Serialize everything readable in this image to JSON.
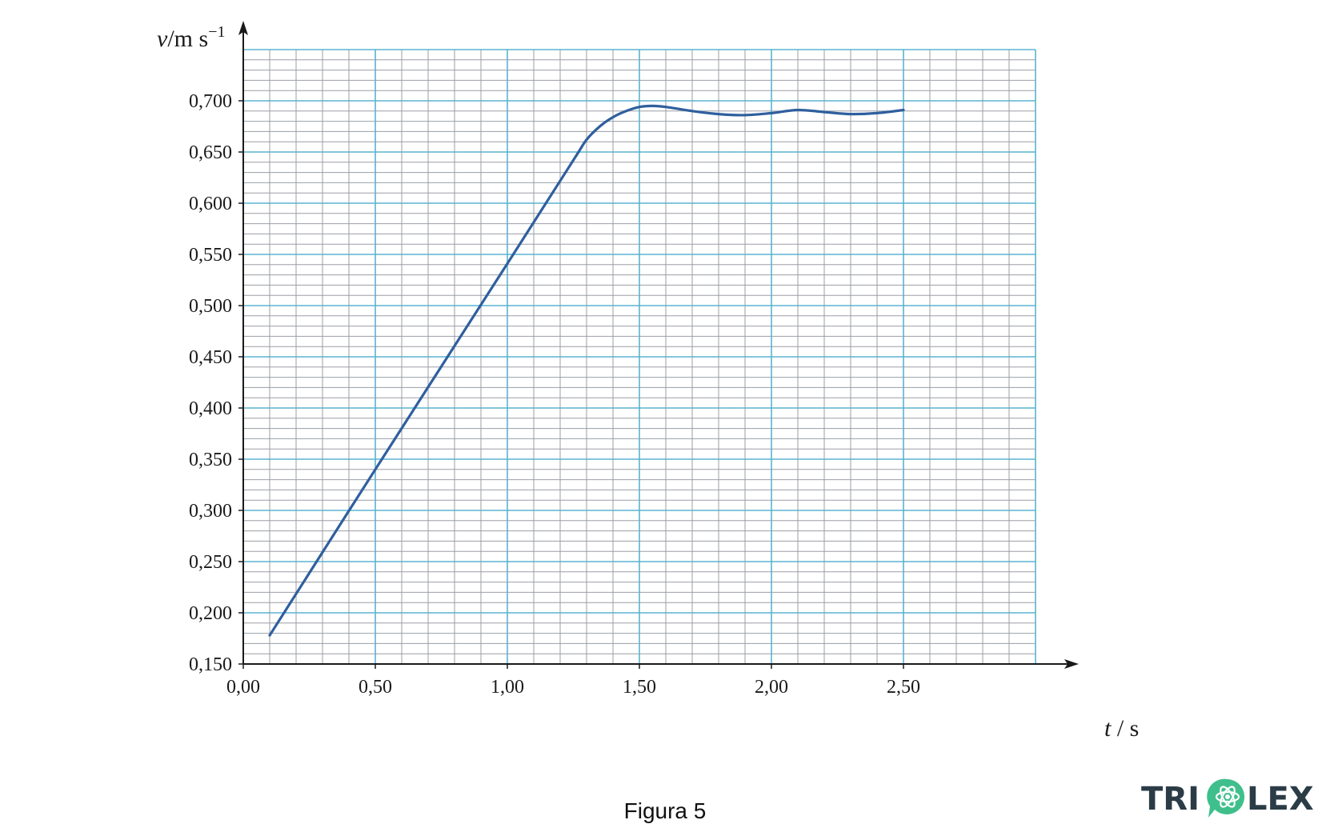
{
  "chart_data": {
    "type": "line",
    "ylabel_var": "v",
    "ylabel_unit": "/m s",
    "ylabel_exp": "−1",
    "xlabel_var": "t",
    "xlabel_unit": " / s",
    "xlim": [
      0.0,
      3.0
    ],
    "ylim": [
      0.15,
      0.75
    ],
    "x_ticks": [
      "0,00",
      "0,50",
      "1,00",
      "1,50",
      "2,00",
      "2,50"
    ],
    "x_tick_values": [
      0.0,
      0.5,
      1.0,
      1.5,
      2.0,
      2.5
    ],
    "y_ticks": [
      "0,150",
      "0,200",
      "0,250",
      "0,300",
      "0,350",
      "0,400",
      "0,450",
      "0,500",
      "0,550",
      "0,600",
      "0,650",
      "0,700"
    ],
    "y_tick_values": [
      0.15,
      0.2,
      0.25,
      0.3,
      0.35,
      0.4,
      0.45,
      0.5,
      0.55,
      0.6,
      0.65,
      0.7
    ],
    "grid": true,
    "grid_minor_x": 0.1,
    "grid_minor_y": 0.01,
    "series": [
      {
        "color": "#2f5f9e",
        "x": [
          0.1,
          0.5,
          1.0,
          1.25,
          1.3,
          1.35,
          1.4,
          1.45,
          1.5,
          1.55,
          1.6,
          1.7,
          1.8,
          1.9,
          2.0,
          2.1,
          2.2,
          2.3,
          2.4,
          2.5
        ],
        "y": [
          0.178,
          0.34,
          0.541,
          0.642,
          0.662,
          0.675,
          0.684,
          0.69,
          0.694,
          0.695,
          0.694,
          0.69,
          0.687,
          0.686,
          0.688,
          0.691,
          0.689,
          0.687,
          0.688,
          0.691
        ]
      }
    ]
  },
  "caption": "Figura 5",
  "logo_text_left": "TRI",
  "logo_text_right": "LEX",
  "colors": {
    "grid_minor": "#9a9ea6",
    "grid_major": "#5ab3d0",
    "axis": "#1a1a1a",
    "curve": "#2f5f9e",
    "logo_dark": "#2b3c46",
    "logo_accent": "#3fbf8c"
  }
}
